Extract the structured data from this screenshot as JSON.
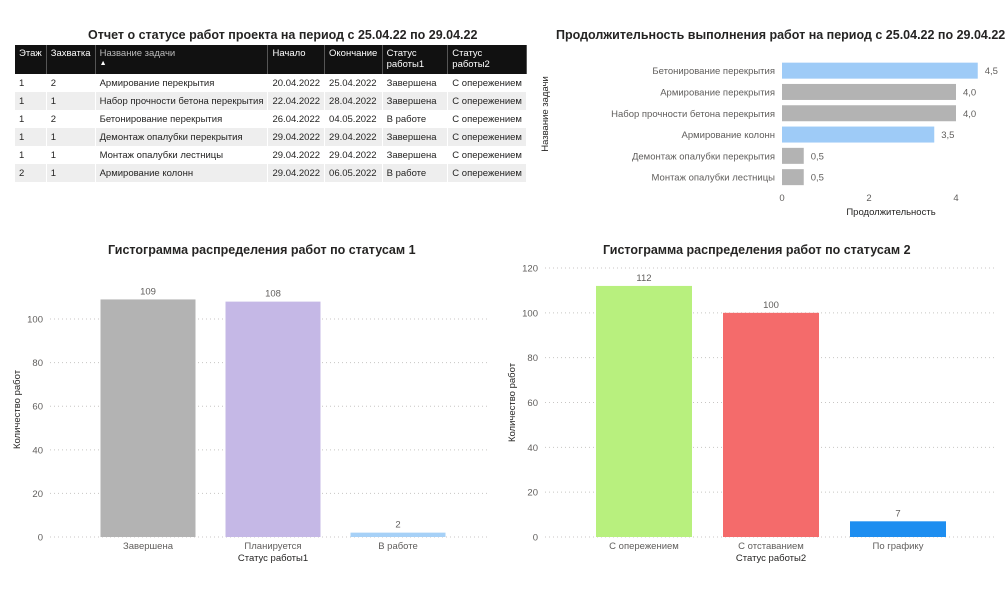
{
  "report": {
    "table_title": "Отчет о статусе работ проекта на период с 25.04.22 по 29.04.22",
    "columns": [
      "Этаж",
      "Захватка",
      "Название задачи",
      "Начало",
      "Окончание",
      "Статус работы1",
      "Статус работы2"
    ],
    "rows": [
      [
        "1",
        "2",
        "Армирование перекрытия",
        "20.04.2022",
        "25.04.2022",
        "Завершена",
        "С опережением"
      ],
      [
        "1",
        "1",
        "Набор прочности бетона перекрытия",
        "22.04.2022",
        "28.04.2022",
        "Завершена",
        "С опережением"
      ],
      [
        "1",
        "2",
        "Бетонирование перекрытия",
        "26.04.2022",
        "04.05.2022",
        "В работе",
        "С опережением"
      ],
      [
        "1",
        "1",
        "Демонтаж опалубки перекрытия",
        "29.04.2022",
        "29.04.2022",
        "Завершена",
        "С опережением"
      ],
      [
        "1",
        "1",
        "Монтаж опалубки лестницы",
        "29.04.2022",
        "29.04.2022",
        "Завершена",
        "С опережением"
      ],
      [
        "2",
        "1",
        "Армирование колонн",
        "29.04.2022",
        "06.05.2022",
        "В работе",
        "С опережением"
      ]
    ]
  },
  "chart_data": [
    {
      "type": "bar",
      "orientation": "horizontal",
      "title": "Продолжительность выполнения работ на период с 25.04.22 по 29.04.22",
      "ylabel": "Название задачи",
      "xlabel": "Продолжительность",
      "categories": [
        "Бетонирование перекрытия",
        "Армирование перекрытия",
        "Набор прочности бетона перекрытия",
        "Армирование колонн",
        "Демонтаж опалубки перекрытия",
        "Монтаж опалубки лестницы"
      ],
      "values": [
        4.5,
        4.0,
        4.0,
        3.5,
        0.5,
        0.5
      ],
      "value_labels": [
        "4,5",
        "4,0",
        "4,0",
        "3,5",
        "0,5",
        "0,5"
      ],
      "colors": [
        "#9ecbf7",
        "#b3b3b3",
        "#b3b3b3",
        "#9ecbf7",
        "#b3b3b3",
        "#b3b3b3"
      ],
      "xticks": [
        0,
        2,
        4
      ],
      "xlim": [
        0,
        4.5
      ]
    },
    {
      "type": "bar",
      "title": "Гистограмма распределения работ по статусам 1",
      "xlabel": "Статус работы1",
      "ylabel": "Количество работ",
      "categories": [
        "Завершена",
        "Планируется",
        "В работе"
      ],
      "values": [
        109,
        108,
        2
      ],
      "colors": [
        "#b3b3b3",
        "#c5b8e6",
        "#a7d1f7"
      ],
      "yticks": [
        0,
        20,
        40,
        60,
        80,
        100
      ],
      "ylim": [
        0,
        117
      ],
      "grid": true
    },
    {
      "type": "bar",
      "title": "Гистограмма распределения работ по статусам 2",
      "xlabel": "Статус работы2",
      "ylabel": "Количество работ",
      "categories": [
        "С опережением",
        "С отставанием",
        "По графику"
      ],
      "values": [
        112,
        100,
        7
      ],
      "colors": [
        "#b8f07e",
        "#f46b6b",
        "#1e8ef0"
      ],
      "yticks": [
        0,
        20,
        40,
        60,
        80,
        100,
        120
      ],
      "ylim": [
        0,
        120
      ],
      "grid": true
    }
  ]
}
